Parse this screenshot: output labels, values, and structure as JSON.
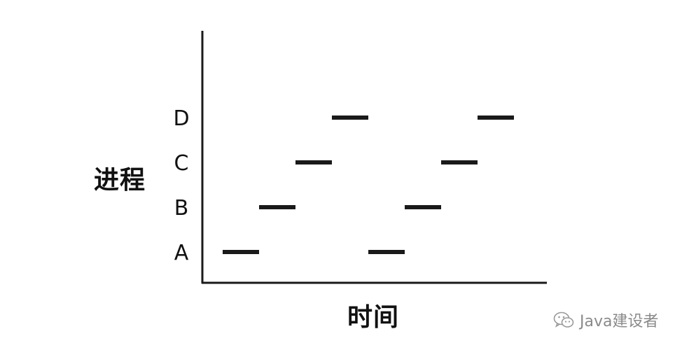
{
  "chart_data": {
    "type": "timeline",
    "y_title": "进程",
    "x_title": "时间",
    "categories": [
      "A",
      "B",
      "C",
      "D"
    ],
    "segments": [
      {
        "process": "A",
        "start": 0,
        "end": 1
      },
      {
        "process": "B",
        "start": 1,
        "end": 2
      },
      {
        "process": "C",
        "start": 2,
        "end": 3
      },
      {
        "process": "D",
        "start": 3,
        "end": 4
      },
      {
        "process": "A",
        "start": 4,
        "end": 5
      },
      {
        "process": "B",
        "start": 5,
        "end": 6
      },
      {
        "process": "C",
        "start": 6,
        "end": 7
      },
      {
        "process": "D",
        "start": 7,
        "end": 8
      }
    ],
    "x_range": [
      0,
      8
    ],
    "x_ticks_shown": false
  },
  "watermark": {
    "icon": "wechat-icon",
    "text": "Java建设者"
  }
}
